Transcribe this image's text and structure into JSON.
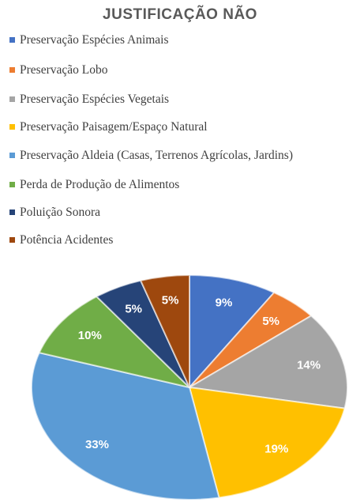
{
  "chart_data": {
    "type": "pie",
    "title": "JUSTIFICAÇÃO NÃO",
    "categories": [
      "Preservação Espécies Animais",
      "Preservação Lobo",
      "Preservação Espécies Vegetais",
      "Preservação Paisagem/Espaço Natural",
      "Preservação Aldeia (Casas, Terrenos Agrícolas, Jardins)",
      "Perda de Produção de Alimentos",
      "Poluição Sonora",
      "Potência Acidentes"
    ],
    "values": [
      9,
      5,
      14,
      19,
      33,
      10,
      5,
      5
    ],
    "value_labels": [
      "9%",
      "5%",
      "14%",
      "19%",
      "33%",
      "10%",
      "5%",
      "5%"
    ],
    "colors": [
      "#4472c4",
      "#ed7d31",
      "#a5a5a5",
      "#ffc000",
      "#5b9bd5",
      "#70ad47",
      "#264478",
      "#9e480e"
    ],
    "legend": "top"
  }
}
